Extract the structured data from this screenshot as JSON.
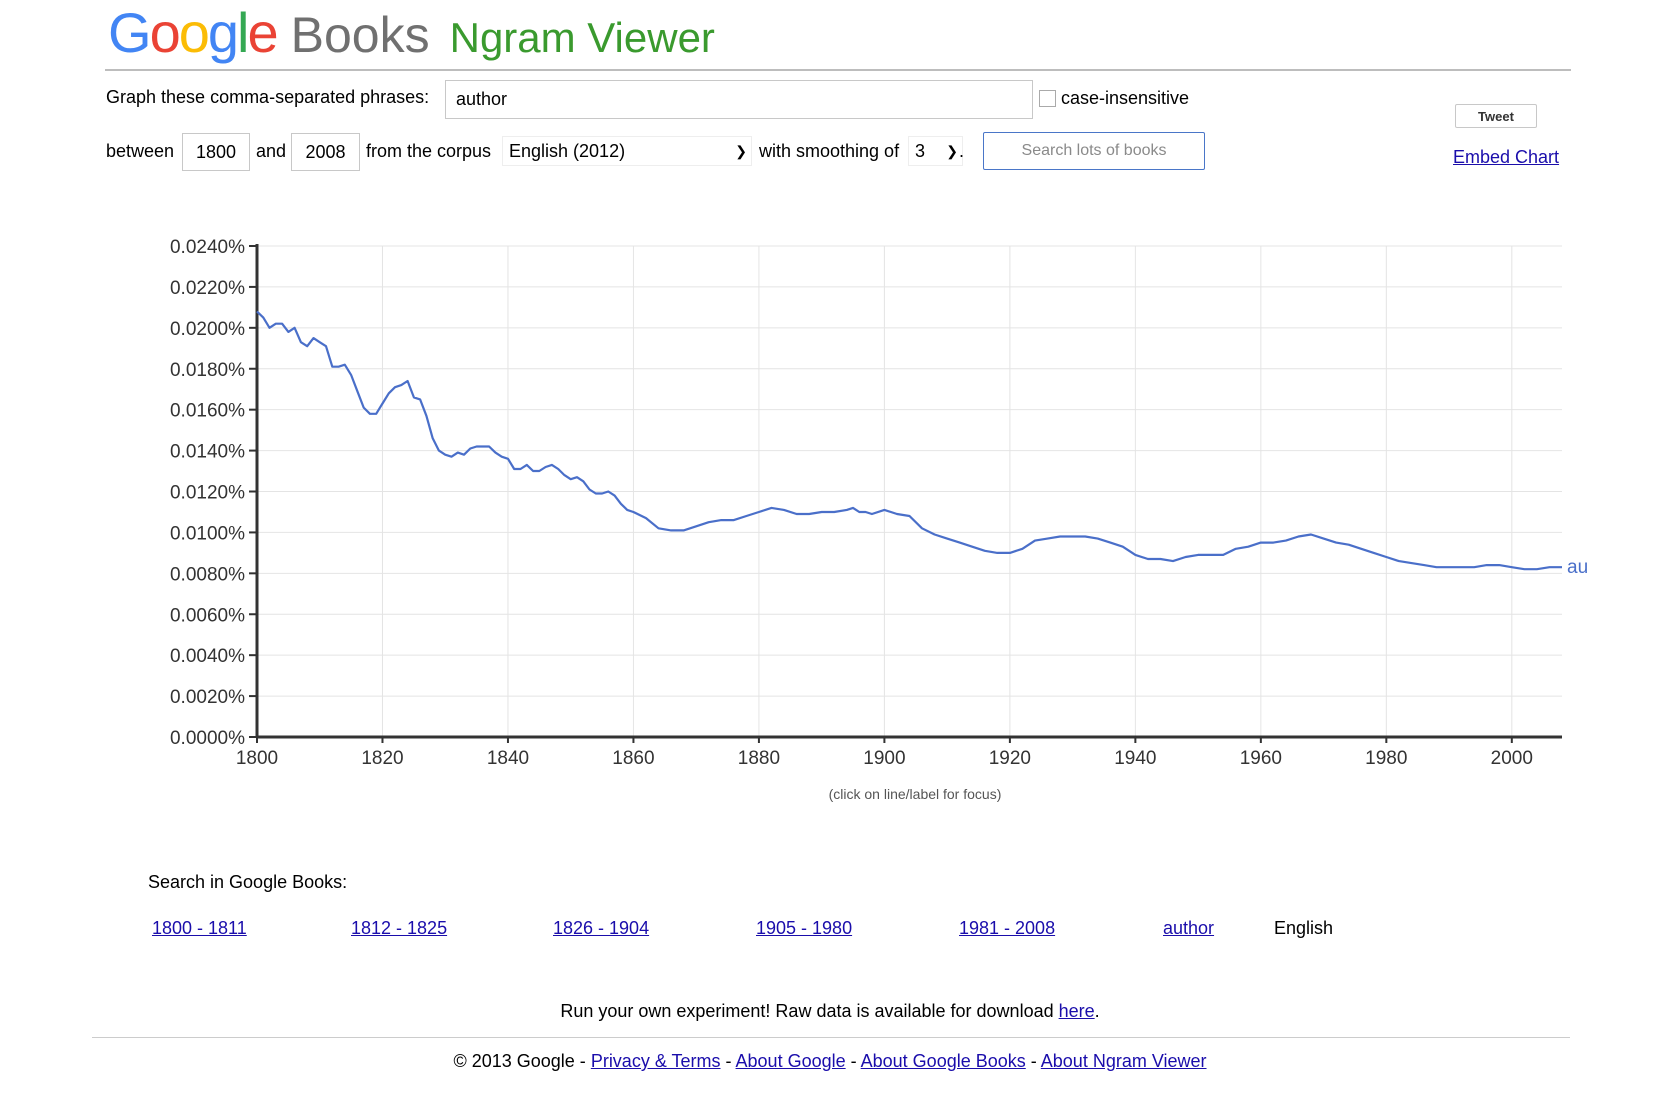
{
  "logo": {
    "google": "Google",
    "books": "Books",
    "ngram": "Ngram Viewer"
  },
  "form": {
    "phrases_label": "Graph these comma-separated phrases:",
    "phrases_value": "author",
    "case_insensitive_label": "case-insensitive",
    "between_label": "between",
    "start_year": "1800",
    "and_label": "and",
    "end_year": "2008",
    "corpus_label": "from the corpus",
    "corpus_value": "English (2012)",
    "smoothing_label": "with smoothing of",
    "smoothing_value": "3",
    "smoothing_suffix": ".",
    "search_button": "Search lots of books"
  },
  "social": {
    "tweet": "Tweet",
    "embed": "Embed Chart"
  },
  "chart_data": {
    "type": "line",
    "ylim": [
      0,
      0.024
    ],
    "xlim": [
      1800,
      2008
    ],
    "y_ticks": [
      "0.0000%",
      "0.0020%",
      "0.0040%",
      "0.0060%",
      "0.0080%",
      "0.0100%",
      "0.0120%",
      "0.0140%",
      "0.0160%",
      "0.0180%",
      "0.0200%",
      "0.0220%",
      "0.0240%"
    ],
    "x_ticks": [
      "1800",
      "1820",
      "1840",
      "1860",
      "1880",
      "1900",
      "1920",
      "1940",
      "1960",
      "1980",
      "2000"
    ],
    "grid": true,
    "note": "(click on line/label for focus)",
    "series": [
      {
        "name": "author",
        "color": "#4a6fc9",
        "x": [
          1800,
          1801,
          1802,
          1803,
          1804,
          1805,
          1806,
          1807,
          1808,
          1809,
          1810,
          1811,
          1812,
          1813,
          1814,
          1815,
          1816,
          1817,
          1818,
          1819,
          1820,
          1821,
          1822,
          1823,
          1824,
          1825,
          1826,
          1827,
          1828,
          1829,
          1830,
          1831,
          1832,
          1833,
          1834,
          1835,
          1836,
          1837,
          1838,
          1839,
          1840,
          1841,
          1842,
          1843,
          1844,
          1845,
          1846,
          1847,
          1848,
          1849,
          1850,
          1851,
          1852,
          1853,
          1854,
          1855,
          1856,
          1857,
          1858,
          1859,
          1860,
          1862,
          1864,
          1866,
          1868,
          1870,
          1872,
          1874,
          1876,
          1878,
          1880,
          1882,
          1884,
          1886,
          1888,
          1890,
          1892,
          1894,
          1895,
          1896,
          1897,
          1898,
          1900,
          1902,
          1904,
          1906,
          1908,
          1910,
          1912,
          1914,
          1916,
          1918,
          1920,
          1922,
          1924,
          1926,
          1928,
          1930,
          1932,
          1934,
          1936,
          1938,
          1940,
          1942,
          1944,
          1946,
          1948,
          1950,
          1952,
          1954,
          1956,
          1958,
          1960,
          1962,
          1964,
          1966,
          1968,
          1970,
          1972,
          1974,
          1976,
          1978,
          1980,
          1982,
          1984,
          1986,
          1988,
          1990,
          1992,
          1994,
          1996,
          1998,
          2000,
          2002,
          2004,
          2006,
          2008
        ],
        "y": [
          0.0208,
          0.0205,
          0.02,
          0.0202,
          0.0202,
          0.0198,
          0.02,
          0.0193,
          0.0191,
          0.0195,
          0.0193,
          0.0191,
          0.0181,
          0.0181,
          0.0182,
          0.0177,
          0.0169,
          0.0161,
          0.0158,
          0.0158,
          0.0163,
          0.0168,
          0.0171,
          0.0172,
          0.0174,
          0.0166,
          0.0165,
          0.0157,
          0.0146,
          0.014,
          0.0138,
          0.0137,
          0.0139,
          0.0138,
          0.0141,
          0.0142,
          0.0142,
          0.0142,
          0.0139,
          0.0137,
          0.0136,
          0.0131,
          0.0131,
          0.0133,
          0.013,
          0.013,
          0.0132,
          0.0133,
          0.0131,
          0.0128,
          0.0126,
          0.0127,
          0.0125,
          0.0121,
          0.0119,
          0.0119,
          0.012,
          0.0118,
          0.0114,
          0.0111,
          0.011,
          0.0107,
          0.0102,
          0.0101,
          0.0101,
          0.0103,
          0.0105,
          0.0106,
          0.0106,
          0.0108,
          0.011,
          0.0112,
          0.0111,
          0.0109,
          0.0109,
          0.011,
          0.011,
          0.0111,
          0.0112,
          0.011,
          0.011,
          0.0109,
          0.0111,
          0.0109,
          0.0108,
          0.0102,
          0.0099,
          0.0097,
          0.0095,
          0.0093,
          0.0091,
          0.009,
          0.009,
          0.0092,
          0.0096,
          0.0097,
          0.0098,
          0.0098,
          0.0098,
          0.0097,
          0.0095,
          0.0093,
          0.0089,
          0.0087,
          0.0087,
          0.0086,
          0.0088,
          0.0089,
          0.0089,
          0.0089,
          0.0092,
          0.0093,
          0.0095,
          0.0095,
          0.0096,
          0.0098,
          0.0099,
          0.0097,
          0.0095,
          0.0094,
          0.0092,
          0.009,
          0.0088,
          0.0086,
          0.0085,
          0.0084,
          0.0083,
          0.0083,
          0.0083,
          0.0083,
          0.0084,
          0.0084,
          0.0083,
          0.0082,
          0.0082,
          0.0083,
          0.0083
        ]
      }
    ],
    "end_label": "au"
  },
  "search_books": {
    "title": "Search in Google Books:",
    "ranges": [
      "1800 - 1811",
      "1812 - 1825",
      "1826 - 1904",
      "1905 - 1980",
      "1981 - 2008"
    ],
    "phrase": "author",
    "corpus": "English"
  },
  "download": {
    "text": "Run your own experiment! Raw data is available for download ",
    "link": "here",
    "suffix": "."
  },
  "footer": {
    "copyright": "© 2013 Google - ",
    "sep": " - ",
    "links": [
      "Privacy & Terms",
      "About Google",
      "About Google Books",
      "About Ngram Viewer"
    ]
  },
  "colors": {
    "google_blue": "#4285f4",
    "google_red": "#ea4335",
    "google_yellow": "#fbbc05",
    "google_green": "#34a853",
    "ngram_green": "#3a9a2e",
    "link": "#1a0dab",
    "line": "#4a6fc9"
  }
}
